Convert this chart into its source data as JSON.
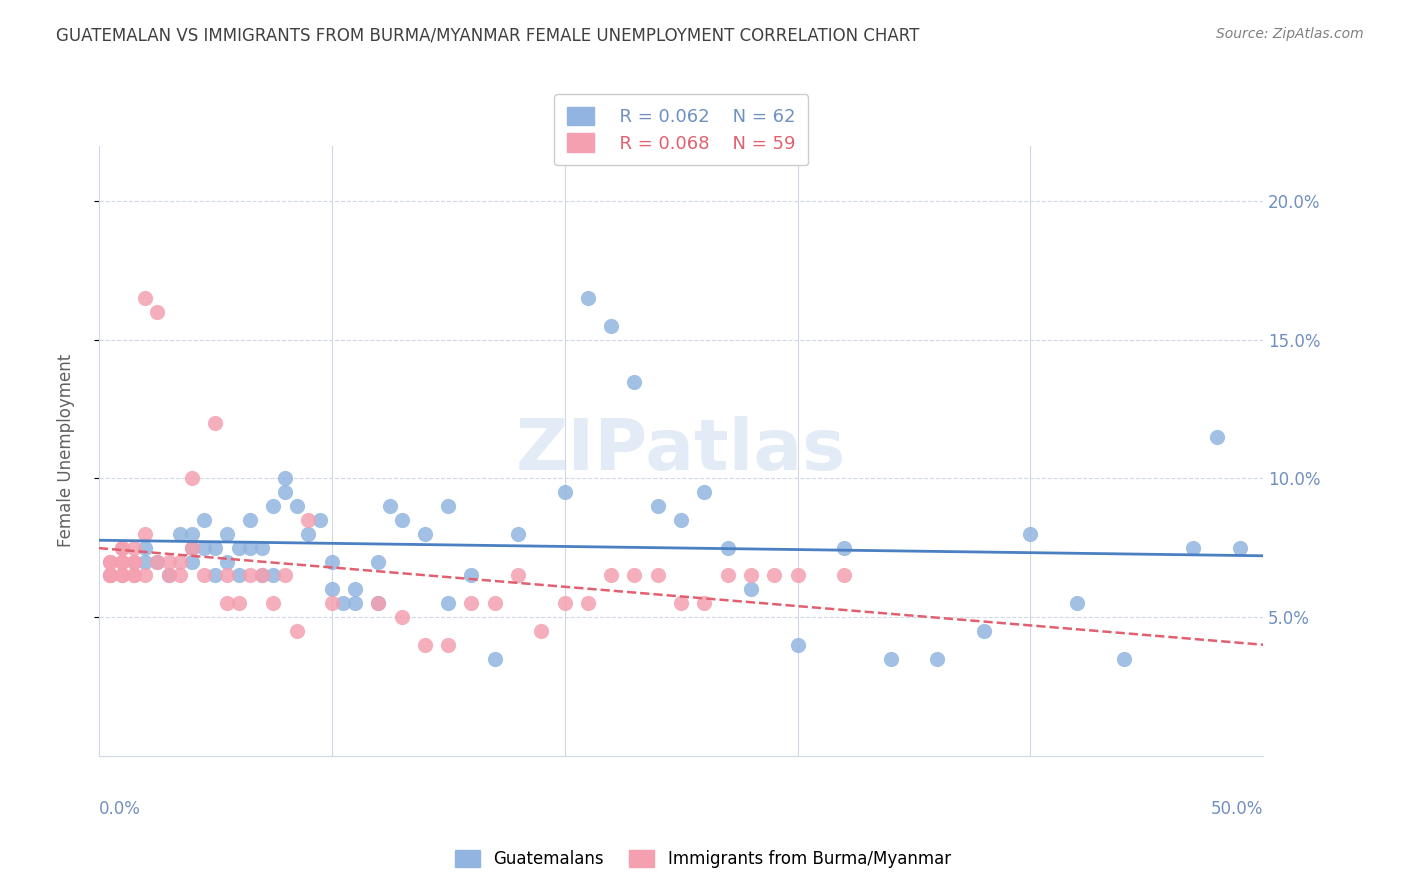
{
  "title": "GUATEMALAN VS IMMIGRANTS FROM BURMA/MYANMAR FEMALE UNEMPLOYMENT CORRELATION CHART",
  "source": "Source: ZipAtlas.com",
  "ylabel": "Female Unemployment",
  "xmin": 0.0,
  "xmax": 0.5,
  "ymin": 0.0,
  "ymax": 0.22,
  "yticks": [
    0.05,
    0.1,
    0.15,
    0.2
  ],
  "ytick_labels": [
    "5.0%",
    "10.0%",
    "15.0%",
    "20.0%"
  ],
  "xticks": [
    0.0,
    0.1,
    0.2,
    0.3,
    0.4,
    0.5
  ],
  "color_blue": "#92b4e0",
  "color_pink": "#f4a0b0",
  "line_blue": "#4a7fc1",
  "line_pink": "#e06070",
  "legend_r1": "R = 0.062",
  "legend_n1": "N = 62",
  "legend_r2": "R = 0.068",
  "legend_n2": "N = 59",
  "blue_x": [
    0.02,
    0.02,
    0.025,
    0.03,
    0.035,
    0.04,
    0.04,
    0.04,
    0.045,
    0.045,
    0.05,
    0.05,
    0.055,
    0.055,
    0.06,
    0.06,
    0.065,
    0.065,
    0.07,
    0.07,
    0.075,
    0.075,
    0.08,
    0.08,
    0.085,
    0.09,
    0.095,
    0.1,
    0.1,
    0.105,
    0.11,
    0.11,
    0.12,
    0.12,
    0.125,
    0.13,
    0.14,
    0.15,
    0.15,
    0.16,
    0.17,
    0.18,
    0.2,
    0.21,
    0.22,
    0.23,
    0.24,
    0.25,
    0.26,
    0.27,
    0.28,
    0.3,
    0.32,
    0.34,
    0.36,
    0.38,
    0.4,
    0.42,
    0.44,
    0.47,
    0.48,
    0.49
  ],
  "blue_y": [
    0.07,
    0.075,
    0.07,
    0.065,
    0.08,
    0.075,
    0.08,
    0.07,
    0.085,
    0.075,
    0.075,
    0.065,
    0.07,
    0.08,
    0.065,
    0.075,
    0.085,
    0.075,
    0.075,
    0.065,
    0.09,
    0.065,
    0.1,
    0.095,
    0.09,
    0.08,
    0.085,
    0.07,
    0.06,
    0.055,
    0.055,
    0.06,
    0.055,
    0.07,
    0.09,
    0.085,
    0.08,
    0.09,
    0.055,
    0.065,
    0.035,
    0.08,
    0.095,
    0.165,
    0.155,
    0.135,
    0.09,
    0.085,
    0.095,
    0.075,
    0.06,
    0.04,
    0.075,
    0.035,
    0.035,
    0.045,
    0.08,
    0.055,
    0.035,
    0.075,
    0.115,
    0.075
  ],
  "pink_x": [
    0.005,
    0.005,
    0.005,
    0.005,
    0.005,
    0.01,
    0.01,
    0.01,
    0.01,
    0.01,
    0.01,
    0.015,
    0.015,
    0.015,
    0.015,
    0.015,
    0.02,
    0.02,
    0.02,
    0.025,
    0.025,
    0.03,
    0.03,
    0.035,
    0.035,
    0.04,
    0.04,
    0.045,
    0.05,
    0.055,
    0.055,
    0.06,
    0.065,
    0.07,
    0.075,
    0.08,
    0.085,
    0.09,
    0.1,
    0.12,
    0.13,
    0.14,
    0.15,
    0.16,
    0.17,
    0.18,
    0.19,
    0.2,
    0.21,
    0.22,
    0.23,
    0.24,
    0.25,
    0.26,
    0.27,
    0.28,
    0.29,
    0.3,
    0.32
  ],
  "pink_y": [
    0.065,
    0.065,
    0.065,
    0.07,
    0.07,
    0.065,
    0.065,
    0.07,
    0.07,
    0.075,
    0.075,
    0.07,
    0.065,
    0.065,
    0.07,
    0.075,
    0.08,
    0.065,
    0.165,
    0.07,
    0.16,
    0.065,
    0.07,
    0.07,
    0.065,
    0.075,
    0.1,
    0.065,
    0.12,
    0.065,
    0.055,
    0.055,
    0.065,
    0.065,
    0.055,
    0.065,
    0.045,
    0.085,
    0.055,
    0.055,
    0.05,
    0.04,
    0.04,
    0.055,
    0.055,
    0.065,
    0.045,
    0.055,
    0.055,
    0.065,
    0.065,
    0.065,
    0.055,
    0.055,
    0.065,
    0.065,
    0.065,
    0.065,
    0.065
  ],
  "axis_color": "#7090c0",
  "grid_color": "#d0d8e8",
  "title_color": "#404040",
  "source_color": "#808080",
  "watermark": "ZIPatlas",
  "watermark_color": "#c8d8f0"
}
